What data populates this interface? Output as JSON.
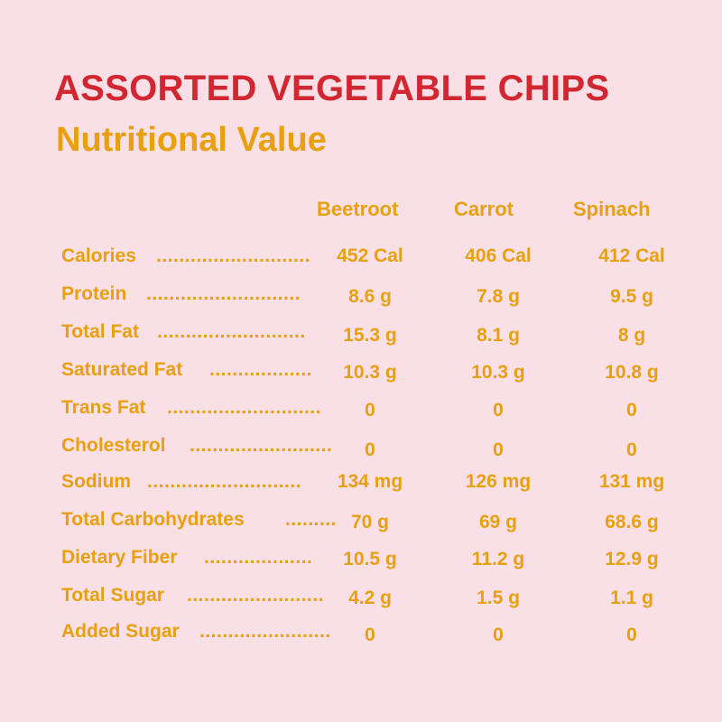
{
  "title": "ASSORTED VEGETABLE CHIPS",
  "subtitle": "Nutritional Value",
  "columns": [
    "Beetroot",
    "Carrot",
    "Spinach"
  ],
  "rows": [
    {
      "label": "Calories",
      "leader": "...........................",
      "values": [
        "452 Cal",
        "406 Cal",
        "412 Cal"
      ]
    },
    {
      "label": "Protein",
      "leader": "...........................",
      "values": [
        "8.6 g",
        "7.8 g",
        "9.5 g"
      ]
    },
    {
      "label": "Total Fat",
      "leader": "..........................",
      "values": [
        "15.3 g",
        "8.1 g",
        "8 g"
      ]
    },
    {
      "label": "Saturated Fat",
      "leader": "..................",
      "values": [
        "10.3 g",
        "10.3 g",
        "10.8 g"
      ]
    },
    {
      "label": "Trans Fat",
      "leader": "...........................",
      "values": [
        "0",
        "0",
        "0"
      ]
    },
    {
      "label": "Cholesterol",
      "leader": ".........................",
      "values": [
        "0",
        "0",
        "0"
      ]
    },
    {
      "label": "Sodium",
      "leader": "...........................",
      "values": [
        "134 mg",
        "126 mg",
        "131 mg"
      ]
    },
    {
      "label": "Total Carbohydrates",
      "leader": ".........",
      "values": [
        "70 g",
        "69 g",
        "68.6 g"
      ]
    },
    {
      "label": "Dietary Fiber",
      "leader": "...................",
      "values": [
        "10.5 g",
        "11.2 g",
        "12.9 g"
      ]
    },
    {
      "label": "Total Sugar",
      "leader": "........................",
      "values": [
        "4.2 g",
        "1.5 g",
        "1.1 g"
      ]
    },
    {
      "label": "Added Sugar",
      "leader": ".......................",
      "values": [
        "0",
        "0",
        "0"
      ]
    }
  ],
  "colors": {
    "background": "#f8e0e6",
    "title": "#d22630",
    "accent": "#e8a010"
  }
}
